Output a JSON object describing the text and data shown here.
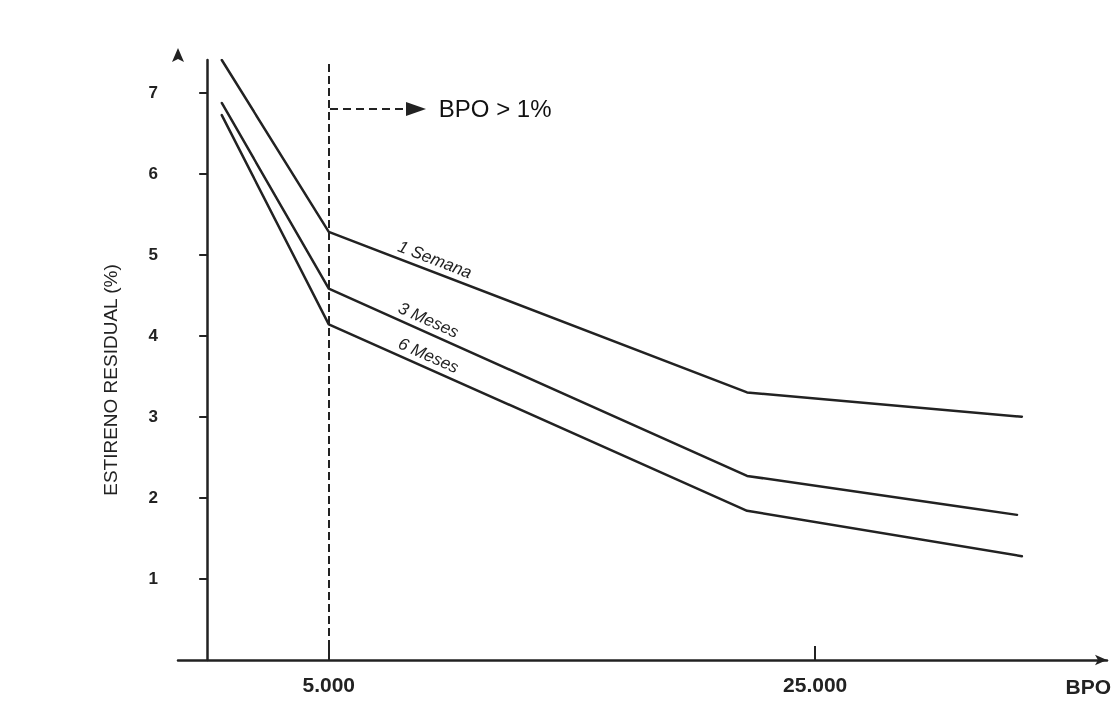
{
  "chart_data": {
    "type": "line",
    "xlabel": "BPO",
    "ylabel": "ESTIRENO RESIDUAL (%)",
    "xlim": [
      -1200,
      37000
    ],
    "ylim": [
      0,
      7.4
    ],
    "xticks": [
      {
        "value": 5000,
        "label": "5.000"
      },
      {
        "value": 25000,
        "label": "25.000"
      }
    ],
    "yticks": [
      1,
      2,
      3,
      4,
      5,
      6,
      7
    ],
    "grid": false,
    "legend": false,
    "marker": "none",
    "line_style": "solid",
    "series": [
      {
        "name": "1 Semana",
        "color": "#222222",
        "x": [
          600,
          5000,
          22200,
          33500
        ],
        "values": [
          7.4,
          5.28,
          3.3,
          3.0
        ]
      },
      {
        "name": "3 Meses",
        "color": "#222222",
        "x": [
          600,
          5000,
          22200,
          33300
        ],
        "values": [
          6.87,
          4.58,
          2.27,
          1.79
        ]
      },
      {
        "name": "6 Meses",
        "color": "#222222",
        "x": [
          600,
          5000,
          22200,
          33500
        ],
        "values": [
          6.72,
          4.14,
          1.84,
          1.28
        ]
      }
    ],
    "ref_lines": [
      {
        "axis": "x",
        "value": 5000,
        "label": "BPO > 1%",
        "line_style": "dashed",
        "color": "#222222"
      }
    ]
  }
}
